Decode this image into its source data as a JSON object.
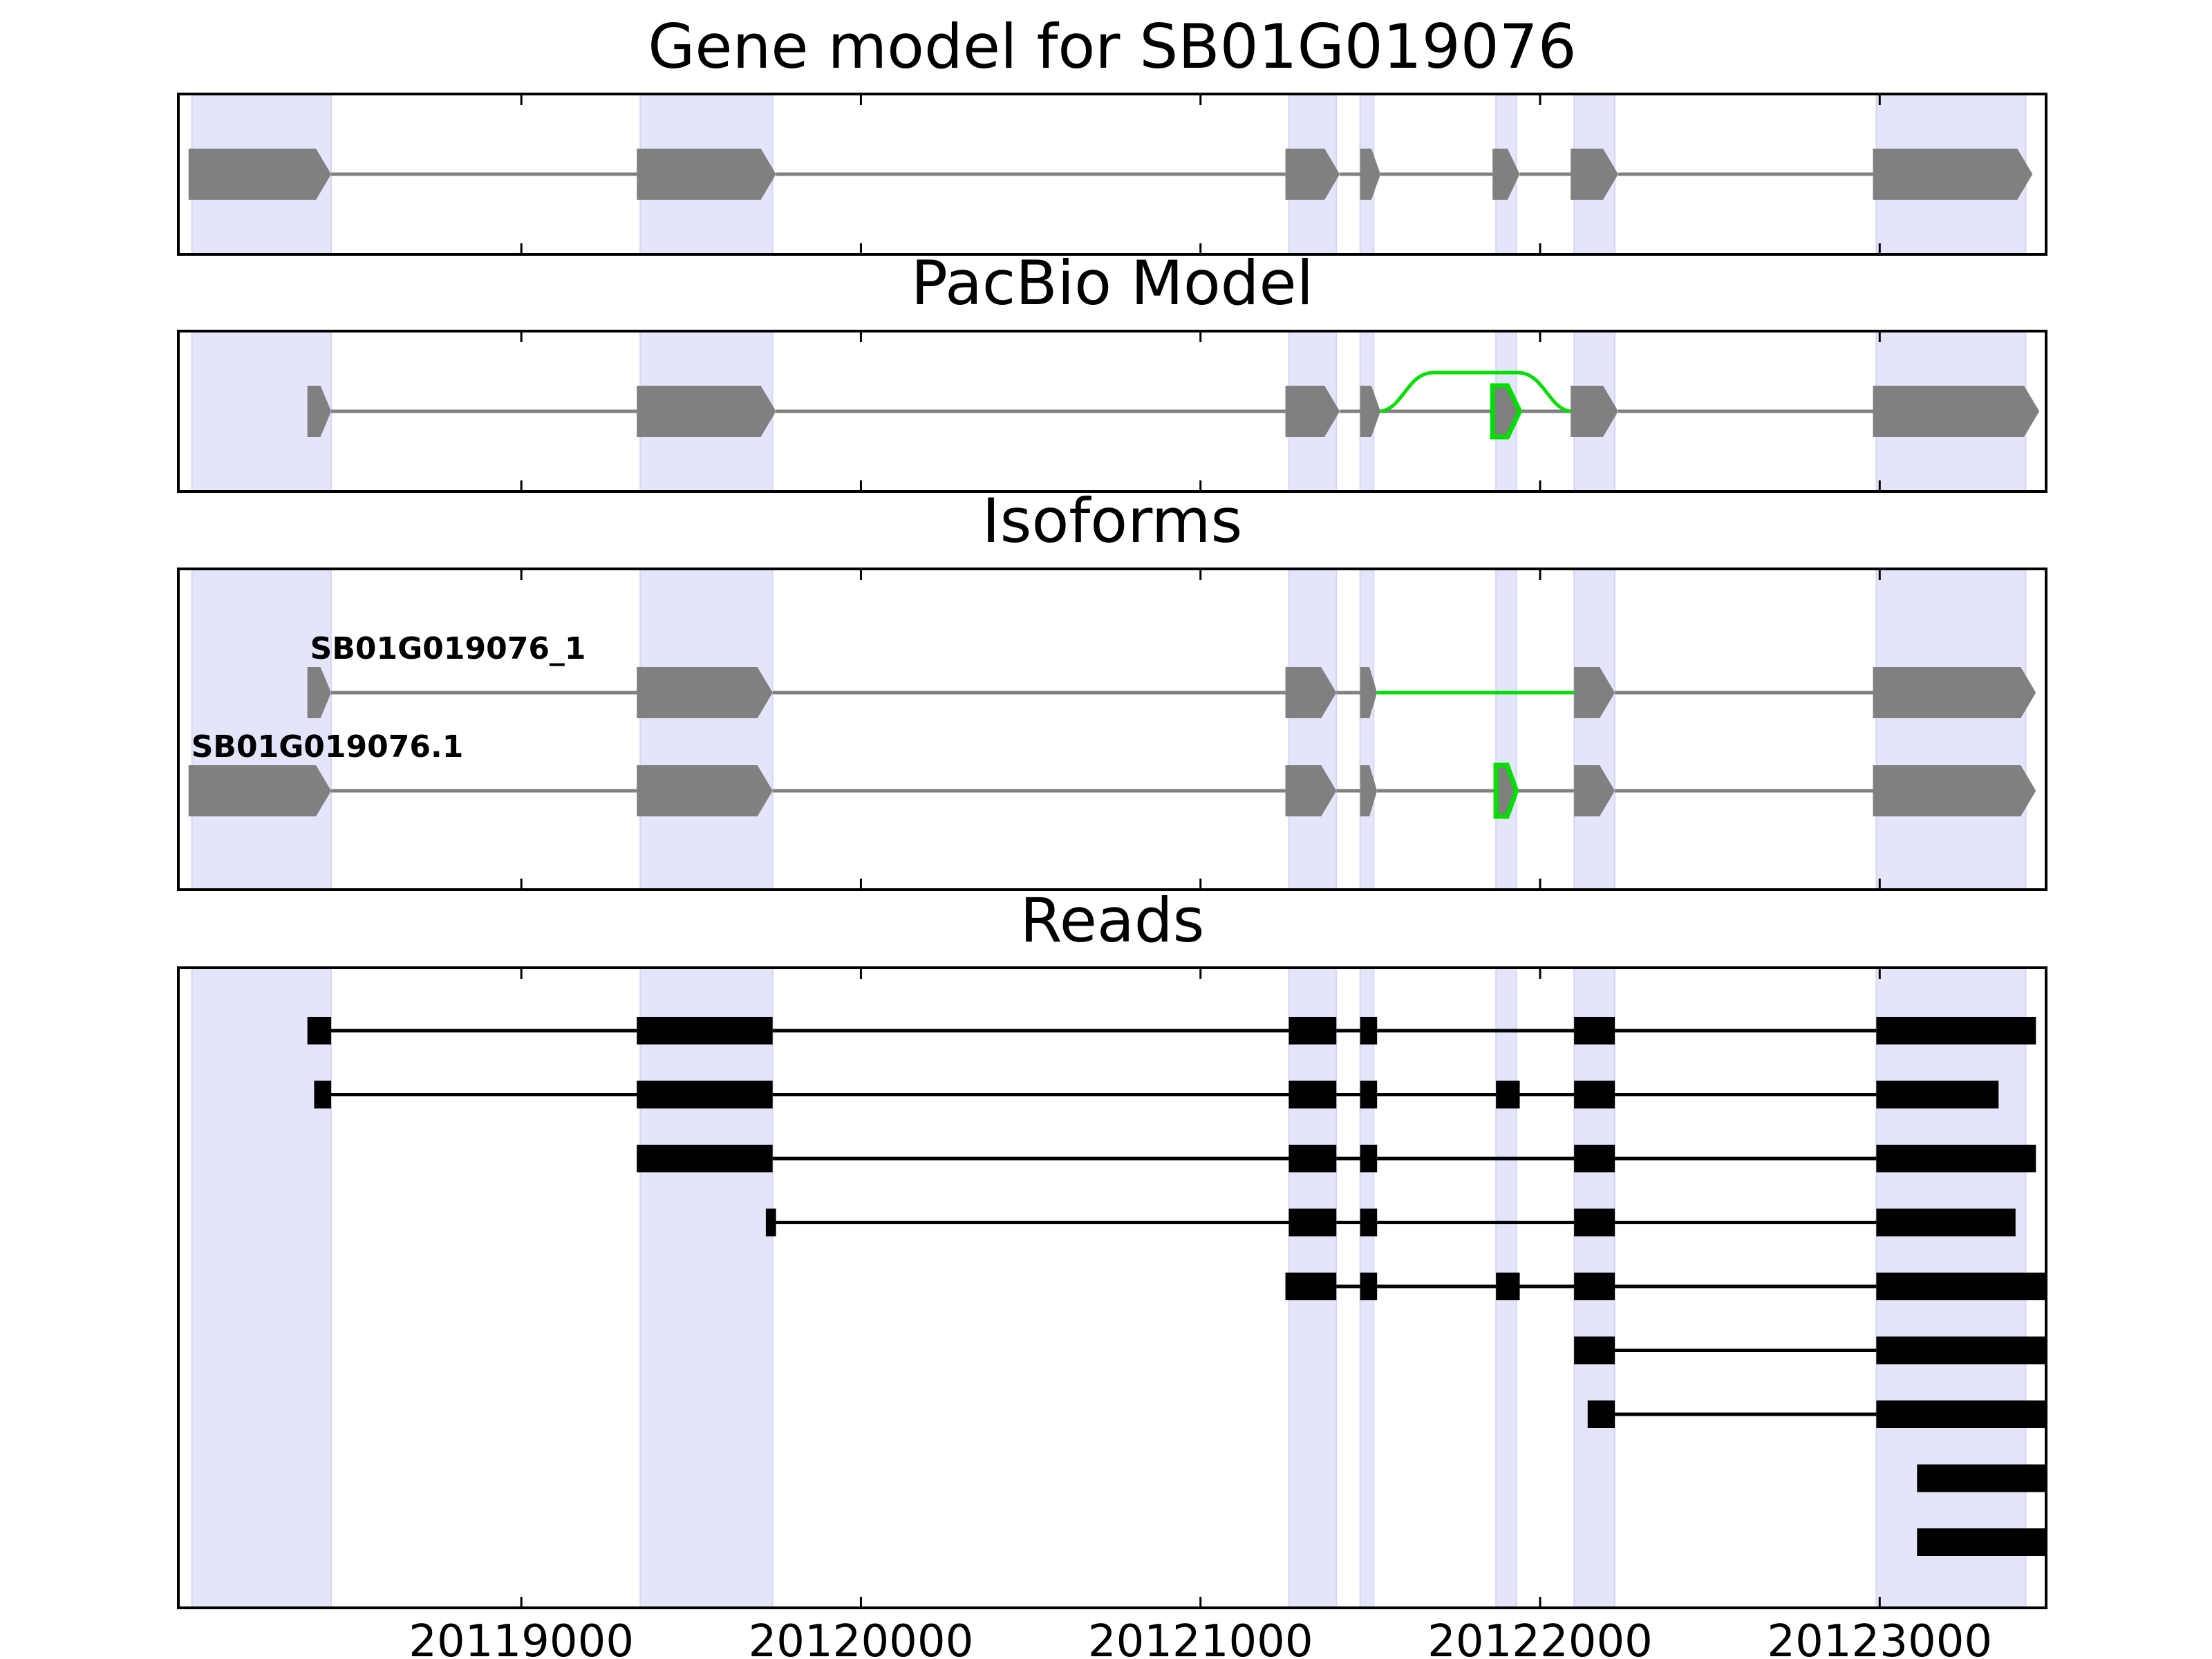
{
  "chart_data": {
    "type": "gene-structure",
    "x_axis": {
      "range": [
        20117990,
        20123490
      ],
      "ticks": [
        20119000,
        20120000,
        20121000,
        20122000,
        20123000
      ],
      "tick_labels": [
        "20119000",
        "20120000",
        "20121000",
        "20122000",
        "20123000"
      ]
    },
    "highlight_regions": [
      [
        20118030,
        20118440
      ],
      [
        20119350,
        20119740
      ],
      [
        20121260,
        20121400
      ],
      [
        20121470,
        20121510
      ],
      [
        20121870,
        20121930
      ],
      [
        20122100,
        20122220
      ],
      [
        20122990,
        20123430
      ]
    ],
    "colors": {
      "exon": "#808080",
      "intron": "#808080",
      "novel": "#00dd00",
      "highlight": "#e4e4fb",
      "read": "#000000"
    },
    "panels": [
      {
        "id": "gene-model",
        "title": "Gene model for SB01G019076",
        "tracks": [
          {
            "label": "",
            "exons": [
              [
                20118020,
                20118440
              ],
              [
                20119340,
                20119750
              ],
              [
                20121250,
                20121410
              ],
              [
                20121470,
                20121530
              ],
              [
                20121860,
                20121940
              ],
              [
                20122090,
                20122230
              ],
              [
                20122980,
                20123450
              ]
            ],
            "novel_exons": [],
            "novel_junctions": []
          }
        ]
      },
      {
        "id": "pacbio-model",
        "title": "PacBio Model",
        "tracks": [
          {
            "label": "",
            "exons": [
              [
                20118370,
                20118440
              ],
              [
                20119340,
                20119750
              ],
              [
                20121250,
                20121410
              ],
              [
                20121470,
                20121530
              ],
              [
                20122090,
                20122230
              ],
              [
                20122980,
                20123470
              ]
            ],
            "novel_exons": [
              [
                20121860,
                20121940
              ]
            ],
            "novel_junctions": [
              [
                20121530,
                20122090,
                "arc"
              ]
            ]
          }
        ]
      },
      {
        "id": "isoforms",
        "title": "Isoforms",
        "tracks": [
          {
            "label": "SB01G019076_1",
            "exons": [
              [
                20118370,
                20118440
              ],
              [
                20119340,
                20119740
              ],
              [
                20121250,
                20121400
              ],
              [
                20121470,
                20121520
              ],
              [
                20122100,
                20122220
              ],
              [
                20122980,
                20123460
              ]
            ],
            "novel_exons": [],
            "novel_junctions": [
              [
                20121520,
                20122100,
                "line"
              ]
            ]
          },
          {
            "label": "SB01G019076.1",
            "exons": [
              [
                20118020,
                20118440
              ],
              [
                20119340,
                20119740
              ],
              [
                20121250,
                20121400
              ],
              [
                20121470,
                20121520
              ],
              [
                20122100,
                20122220
              ],
              [
                20122980,
                20123460
              ]
            ],
            "novel_exons": [
              [
                20121870,
                20121930
              ]
            ],
            "novel_junctions": []
          }
        ]
      },
      {
        "id": "reads",
        "title": "Reads",
        "reads": [
          [
            [
              20118370,
              20118440
            ],
            [
              20119340,
              20119740
            ],
            [
              20121260,
              20121400
            ],
            [
              20121470,
              20121520
            ],
            [
              20122100,
              20122220
            ],
            [
              20122990,
              20123460
            ]
          ],
          [
            [
              20118390,
              20118440
            ],
            [
              20119340,
              20119740
            ],
            [
              20121260,
              20121400
            ],
            [
              20121470,
              20121520
            ],
            [
              20121870,
              20121940
            ],
            [
              20122100,
              20122220
            ],
            [
              20122990,
              20123350
            ]
          ],
          [
            [
              20119340,
              20119740
            ],
            [
              20121260,
              20121400
            ],
            [
              20121470,
              20121520
            ],
            [
              20122100,
              20122220
            ],
            [
              20122990,
              20123460
            ]
          ],
          [
            [
              20119720,
              20119750
            ],
            [
              20121260,
              20121400
            ],
            [
              20121470,
              20121520
            ],
            [
              20122100,
              20122220
            ],
            [
              20122990,
              20123400
            ]
          ],
          [
            [
              20121250,
              20121400
            ],
            [
              20121470,
              20121520
            ],
            [
              20121870,
              20121940
            ],
            [
              20122100,
              20122220
            ],
            [
              20122990,
              20123490
            ]
          ],
          [
            [
              20122100,
              20122220
            ],
            [
              20122990,
              20123490
            ]
          ],
          [
            [
              20122140,
              20122220
            ],
            [
              20122990,
              20123490
            ]
          ],
          [
            [
              20123110,
              20123490
            ]
          ],
          [
            [
              20123110,
              20123490
            ]
          ]
        ]
      }
    ]
  }
}
